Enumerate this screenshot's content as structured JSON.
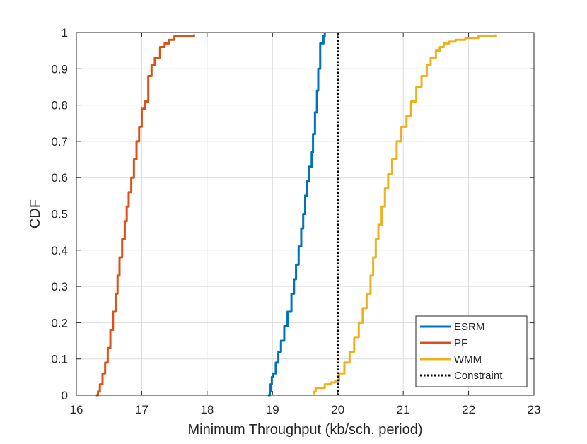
{
  "chart_data": {
    "type": "line",
    "title": "",
    "xlabel": "Minimum Throughput (kb/sch. period)",
    "ylabel": "CDF",
    "xlim": [
      16,
      23
    ],
    "ylim": [
      0,
      1
    ],
    "grid": true,
    "legend_position": "bottom-right",
    "x_ticks": [
      16,
      17,
      18,
      19,
      20,
      21,
      22,
      23
    ],
    "y_ticks": [
      0,
      0.1,
      0.2,
      0.3,
      0.4,
      0.5,
      0.6,
      0.7,
      0.8,
      0.9,
      1
    ],
    "x_tick_labels": [
      "16",
      "17",
      "18",
      "19",
      "20",
      "21",
      "22",
      "23"
    ],
    "y_tick_labels": [
      "0",
      "0.1",
      "0.2",
      "0.3",
      "0.4",
      "0.5",
      "0.6",
      "0.7",
      "0.8",
      "0.9",
      "1"
    ],
    "series": [
      {
        "name": "ESRM",
        "color": "#0072BD",
        "style": "solid",
        "x": [
          18.93,
          18.96,
          18.97,
          18.99,
          19.01,
          19.05,
          19.09,
          19.13,
          19.18,
          19.23,
          19.29,
          19.33,
          19.36,
          19.4,
          19.44,
          19.47,
          19.5,
          19.53,
          19.56,
          19.6,
          19.62,
          19.65,
          19.68,
          19.7,
          19.73,
          19.78,
          19.8
        ],
        "y": [
          0.0,
          0.01,
          0.03,
          0.05,
          0.06,
          0.09,
          0.12,
          0.15,
          0.19,
          0.23,
          0.28,
          0.32,
          0.36,
          0.41,
          0.46,
          0.5,
          0.55,
          0.59,
          0.63,
          0.67,
          0.72,
          0.78,
          0.84,
          0.9,
          0.97,
          0.99,
          1.0
        ]
      },
      {
        "name": "PF",
        "color": "#D95319",
        "style": "solid",
        "x": [
          16.3,
          16.33,
          16.36,
          16.4,
          16.44,
          16.48,
          16.52,
          16.56,
          16.6,
          16.63,
          16.66,
          16.7,
          16.74,
          16.77,
          16.8,
          16.84,
          16.88,
          16.92,
          16.96,
          17.0,
          17.05,
          17.1,
          17.15,
          17.2,
          17.28,
          17.35,
          17.42,
          17.5,
          17.8
        ],
        "y": [
          0.0,
          0.01,
          0.03,
          0.06,
          0.09,
          0.13,
          0.18,
          0.23,
          0.28,
          0.33,
          0.38,
          0.43,
          0.48,
          0.52,
          0.56,
          0.6,
          0.65,
          0.7,
          0.74,
          0.79,
          0.81,
          0.88,
          0.91,
          0.93,
          0.96,
          0.97,
          0.98,
          0.99,
          0.995
        ]
      },
      {
        "name": "WMM",
        "color": "#EDB120",
        "style": "solid",
        "x": [
          19.63,
          19.64,
          19.66,
          19.8,
          19.9,
          19.96,
          20.02,
          20.1,
          20.18,
          20.25,
          20.32,
          20.38,
          20.44,
          20.5,
          20.54,
          20.58,
          20.62,
          20.67,
          20.72,
          20.77,
          20.83,
          20.9,
          20.97,
          21.05,
          21.12,
          21.2,
          21.28,
          21.36,
          21.42,
          21.5,
          21.56,
          21.62,
          21.7,
          21.8,
          21.95,
          22.15,
          22.42
        ],
        "y": [
          0.005,
          0.01,
          0.02,
          0.03,
          0.035,
          0.04,
          0.06,
          0.09,
          0.12,
          0.16,
          0.2,
          0.24,
          0.28,
          0.33,
          0.38,
          0.43,
          0.47,
          0.52,
          0.57,
          0.61,
          0.65,
          0.7,
          0.74,
          0.77,
          0.81,
          0.85,
          0.88,
          0.91,
          0.93,
          0.95,
          0.96,
          0.97,
          0.975,
          0.98,
          0.985,
          0.99,
          0.995
        ]
      },
      {
        "name": "Constraint",
        "color": "#000000",
        "style": "dotted",
        "x": [
          20,
          20
        ],
        "y": [
          0,
          1
        ]
      }
    ]
  }
}
